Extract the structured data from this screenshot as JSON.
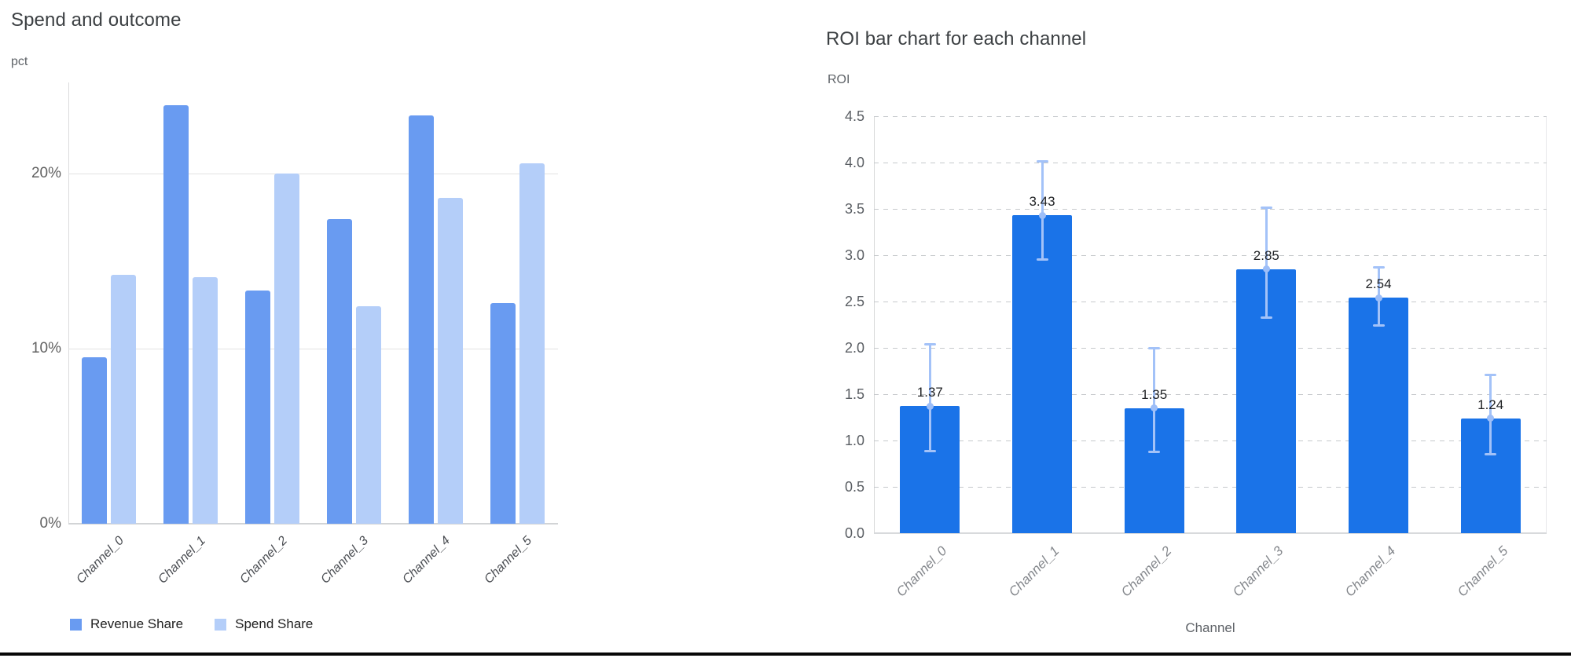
{
  "chart_data": [
    {
      "type": "bar",
      "title": "Spend and outcome",
      "y_axis_name": "pct",
      "categories": [
        "Channel_0",
        "Channel_1",
        "Channel_2",
        "Channel_3",
        "Channel_4",
        "Channel_5"
      ],
      "series": [
        {
          "name": "Revenue Share",
          "color": "#699BF1",
          "values": [
            9.5,
            23.9,
            13.3,
            17.4,
            23.3,
            12.6
          ]
        },
        {
          "name": "Spend Share",
          "color": "#B4CEF9",
          "values": [
            14.2,
            14.1,
            20.0,
            12.4,
            18.6,
            20.6
          ]
        }
      ],
      "y_ticks": [
        {
          "v": 0,
          "label": "0%"
        },
        {
          "v": 10,
          "label": "10%"
        },
        {
          "v": 20,
          "label": "20%"
        }
      ],
      "ylim": [
        0,
        25.2
      ],
      "unit": "percent",
      "grid": "solid",
      "legend_position": "bottom"
    },
    {
      "type": "bar",
      "title": "ROI bar chart for each channel",
      "y_axis_name": "ROI",
      "x_axis_name": "Channel",
      "categories": [
        "Channel_0",
        "Channel_1",
        "Channel_2",
        "Channel_3",
        "Channel_4",
        "Channel_5"
      ],
      "values": [
        1.37,
        3.43,
        1.35,
        2.85,
        2.54,
        1.24
      ],
      "data_labels": [
        "1.37",
        "3.43",
        "1.35",
        "2.85",
        "2.54",
        "1.24"
      ],
      "error_low": [
        0.88,
        2.95,
        0.87,
        2.32,
        2.24,
        0.85
      ],
      "error_high": [
        2.04,
        4.02,
        2.0,
        3.52,
        2.87,
        1.71
      ],
      "bar_color": "#1A73E8",
      "error_bar_color": "#A3C2F8",
      "error_dot_color": "#9DBEF8",
      "y_ticks": [
        {
          "v": 0,
          "label": "0.0"
        },
        {
          "v": 0.5,
          "label": "0.5"
        },
        {
          "v": 1,
          "label": "1.0"
        },
        {
          "v": 1.5,
          "label": "1.5"
        },
        {
          "v": 2,
          "label": "2.0"
        },
        {
          "v": 2.5,
          "label": "2.5"
        },
        {
          "v": 3,
          "label": "3.0"
        },
        {
          "v": 3.5,
          "label": "3.5"
        },
        {
          "v": 4,
          "label": "4.0"
        },
        {
          "v": 4.5,
          "label": "4.5"
        }
      ],
      "ylim": [
        0,
        4.5
      ],
      "grid": "dashed",
      "legend_position": "none"
    }
  ]
}
